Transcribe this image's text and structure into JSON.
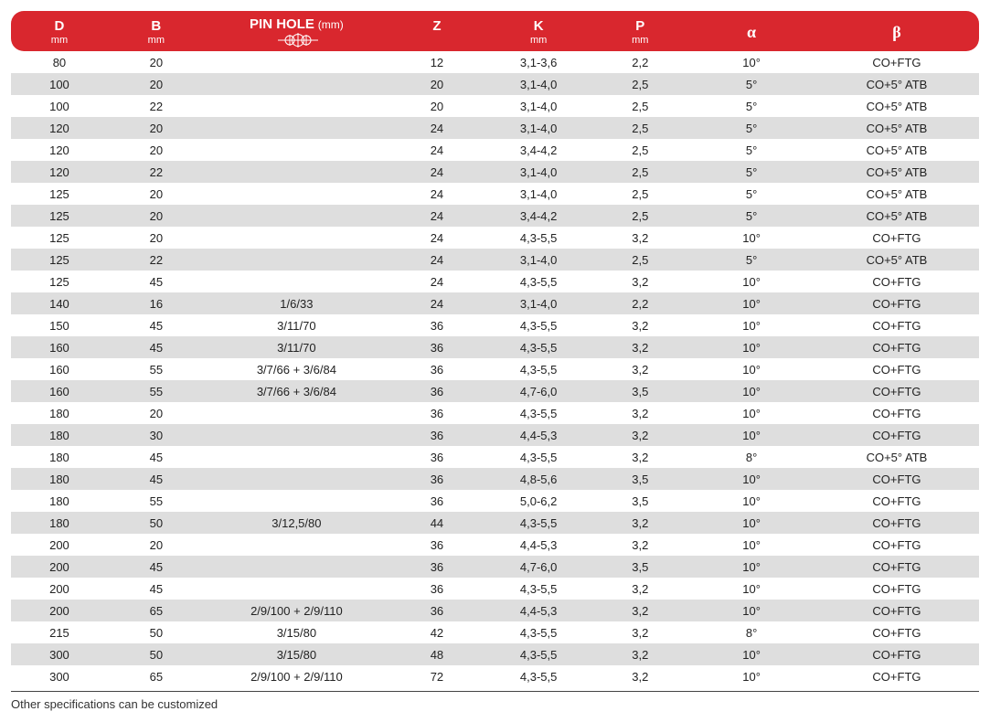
{
  "colors": {
    "header_bg": "#d9272e",
    "header_text": "#ffffff",
    "row_even_bg": "#ffffff",
    "row_odd_bg": "#dedede",
    "body_text": "#222222",
    "footer_border": "#444444"
  },
  "typography": {
    "header_main_fontsize": 15,
    "header_unit_fontsize": 11,
    "header_symbol_fontsize": 18,
    "cell_fontsize": 13,
    "footer_fontsize": 13
  },
  "table": {
    "columns": [
      {
        "main": "D",
        "unit": "mm",
        "width": "10%"
      },
      {
        "main": "B",
        "unit": "mm",
        "width": "10%"
      },
      {
        "main": "PIN HOLE",
        "suffix": "(mm)",
        "icon": "pinhole-icon",
        "width": "19%"
      },
      {
        "main": "Z",
        "unit": "",
        "width": "10%"
      },
      {
        "main": "K",
        "unit": "mm",
        "width": "11%"
      },
      {
        "main": "P",
        "unit": "mm",
        "width": "10%"
      },
      {
        "symbol": "α",
        "width": "13%"
      },
      {
        "symbol": "β",
        "width": "17%"
      }
    ],
    "rows": [
      [
        "80",
        "20",
        "",
        "12",
        "3,1-3,6",
        "2,2",
        "10°",
        "CO+FTG"
      ],
      [
        "100",
        "20",
        "",
        "20",
        "3,1-4,0",
        "2,5",
        "5°",
        "CO+5° ATB"
      ],
      [
        "100",
        "22",
        "",
        "20",
        "3,1-4,0",
        "2,5",
        "5°",
        "CO+5° ATB"
      ],
      [
        "120",
        "20",
        "",
        "24",
        "3,1-4,0",
        "2,5",
        "5°",
        "CO+5° ATB"
      ],
      [
        "120",
        "20",
        "",
        "24",
        "3,4-4,2",
        "2,5",
        "5°",
        "CO+5° ATB"
      ],
      [
        "120",
        "22",
        "",
        "24",
        "3,1-4,0",
        "2,5",
        "5°",
        "CO+5° ATB"
      ],
      [
        "125",
        "20",
        "",
        "24",
        "3,1-4,0",
        "2,5",
        "5°",
        "CO+5° ATB"
      ],
      [
        "125",
        "20",
        "",
        "24",
        "3,4-4,2",
        "2,5",
        "5°",
        "CO+5° ATB"
      ],
      [
        "125",
        "20",
        "",
        "24",
        "4,3-5,5",
        "3,2",
        "10°",
        "CO+FTG"
      ],
      [
        "125",
        "22",
        "",
        "24",
        "3,1-4,0",
        "2,5",
        "5°",
        "CO+5° ATB"
      ],
      [
        "125",
        "45",
        "",
        "24",
        "4,3-5,5",
        "3,2",
        "10°",
        "CO+FTG"
      ],
      [
        "140",
        "16",
        "1/6/33",
        "24",
        "3,1-4,0",
        "2,2",
        "10°",
        "CO+FTG"
      ],
      [
        "150",
        "45",
        "3/11/70",
        "36",
        "4,3-5,5",
        "3,2",
        "10°",
        "CO+FTG"
      ],
      [
        "160",
        "45",
        "3/11/70",
        "36",
        "4,3-5,5",
        "3,2",
        "10°",
        "CO+FTG"
      ],
      [
        "160",
        "55",
        "3/7/66 + 3/6/84",
        "36",
        "4,3-5,5",
        "3,2",
        "10°",
        "CO+FTG"
      ],
      [
        "160",
        "55",
        "3/7/66 + 3/6/84",
        "36",
        "4,7-6,0",
        "3,5",
        "10°",
        "CO+FTG"
      ],
      [
        "180",
        "20",
        "",
        "36",
        "4,3-5,5",
        "3,2",
        "10°",
        "CO+FTG"
      ],
      [
        "180",
        "30",
        "",
        "36",
        "4,4-5,3",
        "3,2",
        "10°",
        "CO+FTG"
      ],
      [
        "180",
        "45",
        "",
        "36",
        "4,3-5,5",
        "3,2",
        "8°",
        "CO+5° ATB"
      ],
      [
        "180",
        "45",
        "",
        "36",
        "4,8-5,6",
        "3,5",
        "10°",
        "CO+FTG"
      ],
      [
        "180",
        "55",
        "",
        "36",
        "5,0-6,2",
        "3,5",
        "10°",
        "CO+FTG"
      ],
      [
        "180",
        "50",
        "3/12,5/80",
        "44",
        "4,3-5,5",
        "3,2",
        "10°",
        "CO+FTG"
      ],
      [
        "200",
        "20",
        "",
        "36",
        "4,4-5,3",
        "3,2",
        "10°",
        "CO+FTG"
      ],
      [
        "200",
        "45",
        "",
        "36",
        "4,7-6,0",
        "3,5",
        "10°",
        "CO+FTG"
      ],
      [
        "200",
        "45",
        "",
        "36",
        "4,3-5,5",
        "3,2",
        "10°",
        "CO+FTG"
      ],
      [
        "200",
        "65",
        "2/9/100 + 2/9/110",
        "36",
        "4,4-5,3",
        "3,2",
        "10°",
        "CO+FTG"
      ],
      [
        "215",
        "50",
        "3/15/80",
        "42",
        "4,3-5,5",
        "3,2",
        "8°",
        "CO+FTG"
      ],
      [
        "300",
        "50",
        "3/15/80",
        "48",
        "4,3-5,5",
        "3,2",
        "10°",
        "CO+FTG"
      ],
      [
        "300",
        "65",
        "2/9/100 + 2/9/110",
        "72",
        "4,3-5,5",
        "3,2",
        "10°",
        "CO+FTG"
      ]
    ]
  },
  "footer_text": "Other specifications can be customized"
}
